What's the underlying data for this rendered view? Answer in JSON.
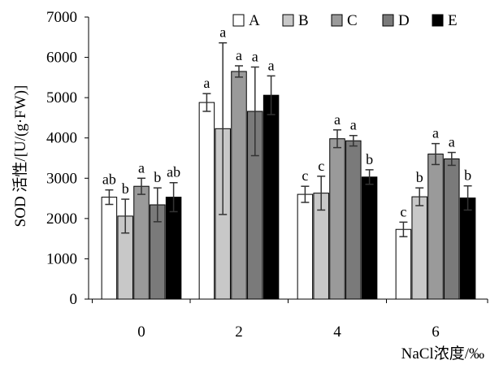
{
  "chart_data": {
    "type": "bar",
    "title": "",
    "xlabel": "NaCl浓度/‰",
    "ylabel": "SOD 活性/[U/(g·FW)]",
    "ylim": [
      0,
      7000
    ],
    "yticks": [
      "0",
      "1000",
      "2000",
      "3000",
      "4000",
      "5000",
      "6000",
      "7000"
    ],
    "categories": [
      "0",
      "2",
      "4",
      "6"
    ],
    "grid": false,
    "legend_position": "top-right",
    "series": [
      {
        "name": "A",
        "color": "#ffffff",
        "values": [
          2530,
          4880,
          2600,
          1730
        ],
        "errors": [
          180,
          220,
          200,
          180
        ],
        "labels": [
          "ab",
          "a",
          "c",
          "c"
        ]
      },
      {
        "name": "B",
        "color": "#c8c8c8",
        "values": [
          2060,
          4230,
          2630,
          2540
        ],
        "errors": [
          420,
          2130,
          420,
          220
        ],
        "labels": [
          "b",
          "a",
          "c",
          "b"
        ]
      },
      {
        "name": "C",
        "color": "#9a9a9a",
        "values": [
          2800,
          5650,
          3980,
          3600
        ],
        "errors": [
          200,
          140,
          220,
          260
        ],
        "labels": [
          "a",
          "a",
          "a",
          "a"
        ]
      },
      {
        "name": "D",
        "color": "#7a7a7a",
        "values": [
          2340,
          4660,
          3930,
          3480
        ],
        "errors": [
          420,
          1100,
          130,
          160
        ],
        "labels": [
          "b",
          "a",
          "a",
          "a"
        ]
      },
      {
        "name": "E",
        "color": "#000000",
        "values": [
          2530,
          5060,
          3030,
          2510
        ],
        "errors": [
          360,
          480,
          180,
          300
        ],
        "labels": [
          "ab",
          "a",
          "b",
          "b"
        ]
      }
    ]
  }
}
